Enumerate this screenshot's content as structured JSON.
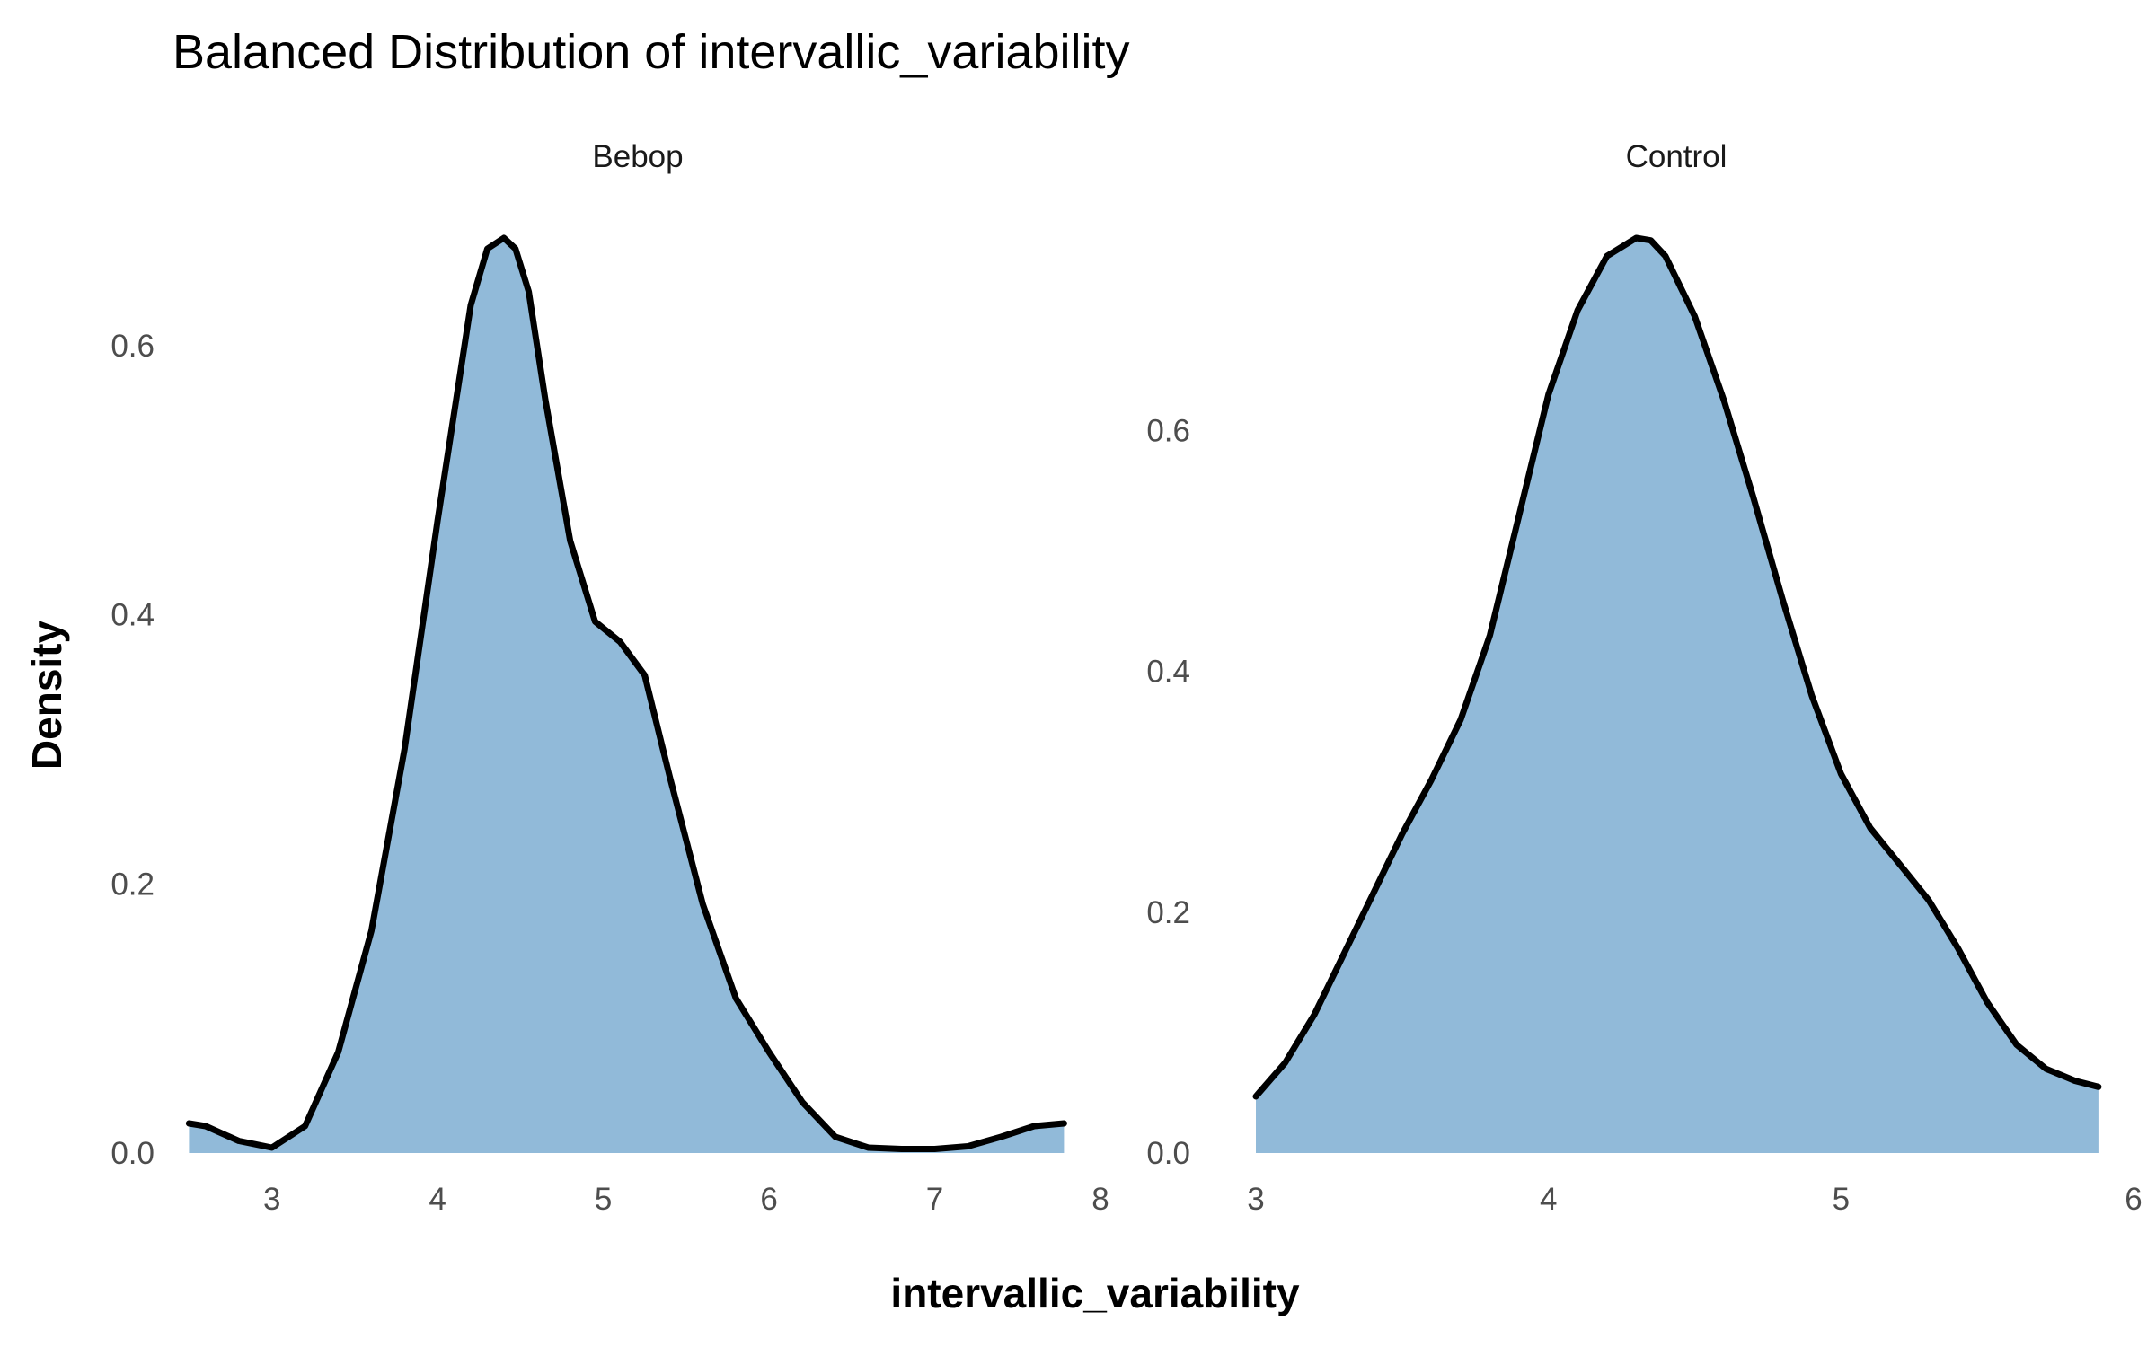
{
  "chart_data": {
    "type": "area",
    "title": "Balanced Distribution of intervallic_variability",
    "xlabel": "intervallic_variability",
    "ylabel": "Density",
    "fill_color": "#91bad9",
    "line_color": "#000000",
    "grid": false,
    "legend": "none",
    "panels": [
      {
        "name": "Bebop",
        "xlim": [
          2.4,
          8.0
        ],
        "ylim": [
          0,
          0.68
        ],
        "x_ticks": [
          3,
          4,
          5,
          6,
          7,
          8
        ],
        "y_ticks": [
          0.0,
          0.2,
          0.4,
          0.6
        ],
        "x": [
          2.5,
          2.6,
          2.8,
          3.0,
          3.2,
          3.4,
          3.6,
          3.8,
          4.0,
          4.2,
          4.3,
          4.4,
          4.47,
          4.55,
          4.65,
          4.8,
          4.95,
          5.1,
          5.25,
          5.4,
          5.6,
          5.8,
          6.0,
          6.2,
          6.4,
          6.6,
          6.8,
          7.0,
          7.2,
          7.4,
          7.6,
          7.78
        ],
        "y": [
          0.022,
          0.02,
          0.009,
          0.004,
          0.02,
          0.075,
          0.165,
          0.3,
          0.47,
          0.63,
          0.672,
          0.68,
          0.672,
          0.64,
          0.56,
          0.455,
          0.395,
          0.38,
          0.355,
          0.28,
          0.185,
          0.115,
          0.075,
          0.038,
          0.012,
          0.004,
          0.003,
          0.003,
          0.005,
          0.012,
          0.02,
          0.022
        ]
      },
      {
        "name": "Control",
        "xlim": [
          3.0,
          6.0
        ],
        "ylim": [
          0,
          0.76
        ],
        "x_ticks": [
          3,
          4,
          5,
          6
        ],
        "y_ticks": [
          0.0,
          0.2,
          0.4,
          0.6
        ],
        "x": [
          3.0,
          3.1,
          3.2,
          3.3,
          3.4,
          3.5,
          3.6,
          3.7,
          3.8,
          3.9,
          4.0,
          4.1,
          4.2,
          4.3,
          4.35,
          4.4,
          4.5,
          4.6,
          4.7,
          4.8,
          4.9,
          5.0,
          5.1,
          5.2,
          5.3,
          5.4,
          5.5,
          5.6,
          5.7,
          5.8,
          5.88
        ],
        "y": [
          0.047,
          0.075,
          0.115,
          0.165,
          0.215,
          0.265,
          0.31,
          0.36,
          0.43,
          0.53,
          0.63,
          0.7,
          0.745,
          0.76,
          0.758,
          0.745,
          0.695,
          0.625,
          0.545,
          0.46,
          0.38,
          0.315,
          0.27,
          0.24,
          0.21,
          0.17,
          0.125,
          0.09,
          0.07,
          0.06,
          0.055
        ]
      }
    ]
  }
}
